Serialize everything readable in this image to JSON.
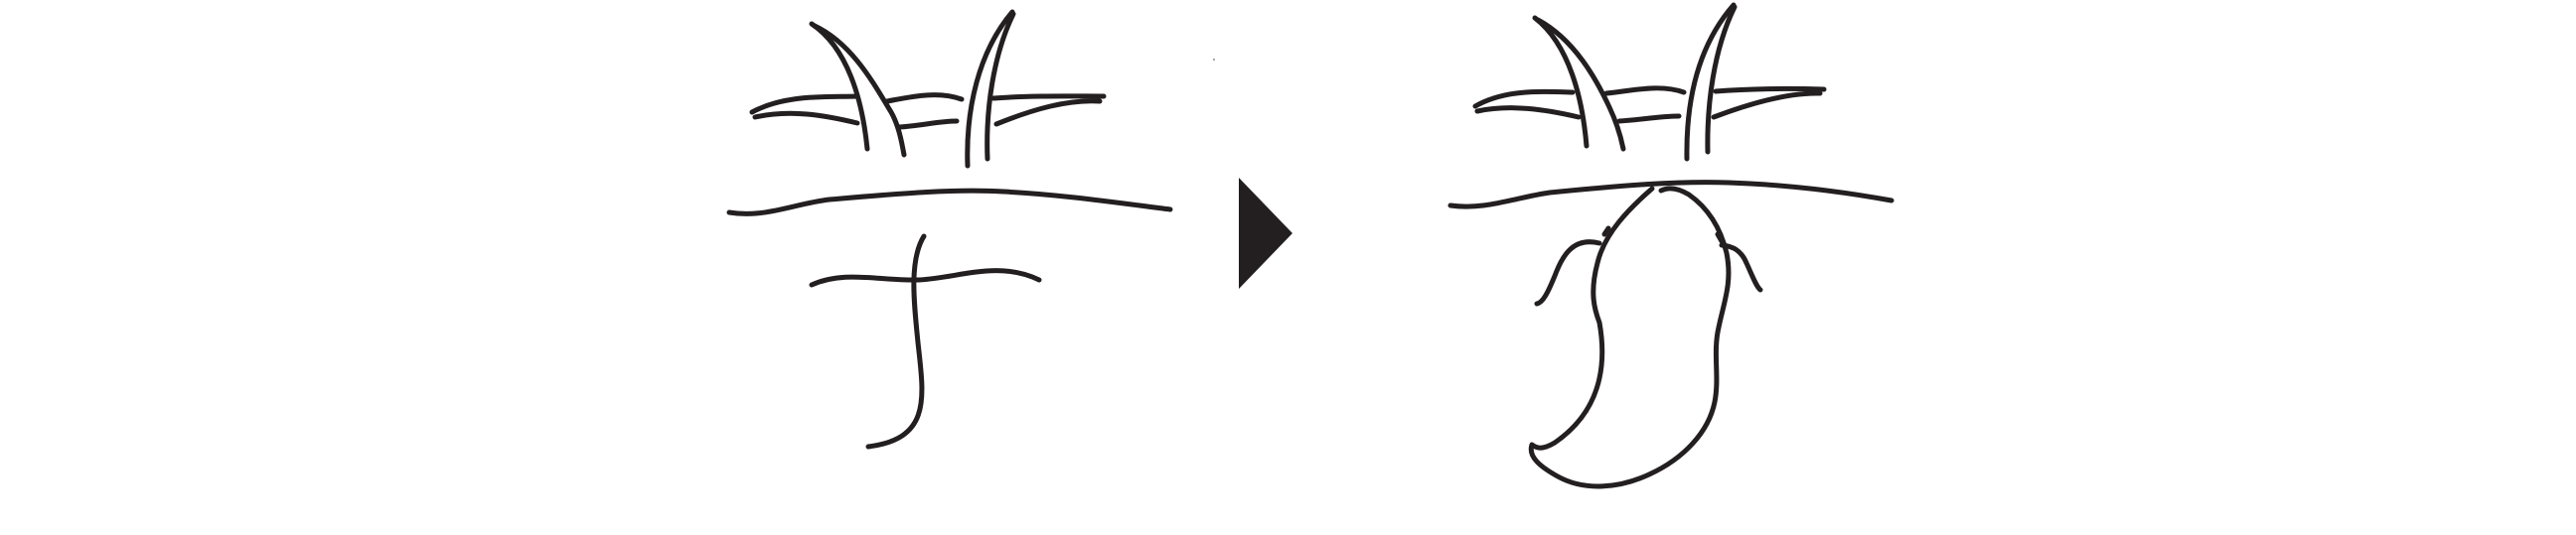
{
  "figure": {
    "background_color": "#ffffff",
    "ink_color": "#231f20",
    "panels": [
      {
        "role": "before",
        "description_icon": "handwritten-character-sketch"
      },
      {
        "role": "after",
        "description_icon": "handwritten-character-with-figure-sketch"
      }
    ],
    "transition_icon": "right-triangle-arrow-icon"
  }
}
